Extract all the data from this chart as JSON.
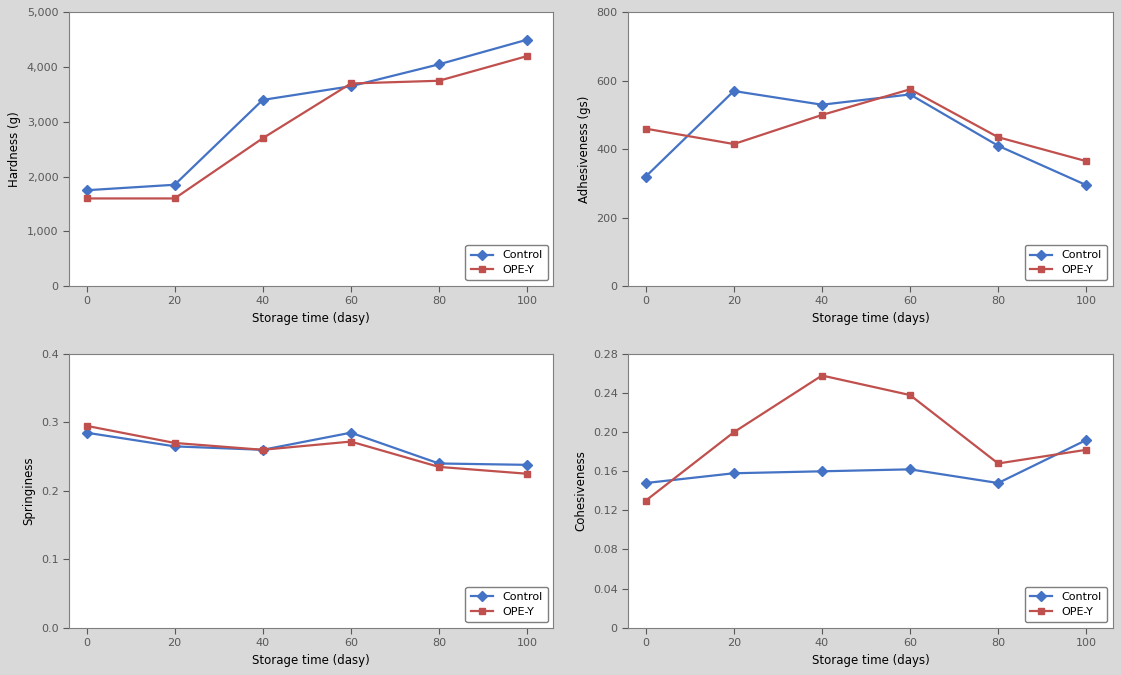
{
  "x": [
    0,
    20,
    40,
    60,
    80,
    100
  ],
  "hardness_control": [
    1750,
    1850,
    3400,
    3650,
    4050,
    4500
  ],
  "hardness_opey": [
    1600,
    1600,
    2700,
    3700,
    3750,
    4200
  ],
  "adhesiveness_control": [
    320,
    570,
    530,
    560,
    410,
    295
  ],
  "adhesiveness_opey": [
    460,
    415,
    500,
    575,
    435,
    365
  ],
  "springiness_control": [
    0.285,
    0.265,
    0.26,
    0.285,
    0.24,
    0.238
  ],
  "springiness_opey": [
    0.295,
    0.27,
    0.26,
    0.272,
    0.235,
    0.225
  ],
  "cohesiveness_control": [
    0.148,
    0.158,
    0.16,
    0.162,
    0.148,
    0.192
  ],
  "cohesiveness_opey": [
    0.13,
    0.2,
    0.258,
    0.238,
    0.168,
    0.182
  ],
  "color_control": "#4472C4",
  "color_opey": "#C0504D",
  "marker_control": "D",
  "marker_opey": "s",
  "xlabel_dasy": "Storage time (dasy)",
  "xlabel_days": "Storage time (days)",
  "ylabel_hardness": "Hardness (g)",
  "ylabel_adhesiveness": "Adhesiveness (gs)",
  "ylabel_springiness": "Springiness",
  "ylabel_cohesiveness": "Cohesiveness",
  "legend_control": "Control",
  "legend_opey": "OPE-Y",
  "hardness_ylim": [
    0,
    5000
  ],
  "hardness_yticks": [
    0,
    1000,
    2000,
    3000,
    4000,
    5000
  ],
  "adhesiveness_ylim": [
    0,
    800
  ],
  "adhesiveness_yticks": [
    0,
    200,
    400,
    600,
    800
  ],
  "springiness_ylim": [
    0.0,
    0.4
  ],
  "springiness_yticks": [
    0.0,
    0.1,
    0.2,
    0.3,
    0.4
  ],
  "cohesiveness_ylim": [
    0,
    0.28
  ],
  "cohesiveness_yticks": [
    0,
    0.04,
    0.08,
    0.12,
    0.16,
    0.2,
    0.24,
    0.28
  ],
  "xticks": [
    0,
    20,
    40,
    60,
    80,
    100
  ],
  "xlim": [
    -4,
    106
  ],
  "fig_bgcolor": "#d9d9d9",
  "ax_bgcolor": "#ffffff",
  "border_color": "#7f7f7f",
  "tick_color": "#595959",
  "gridline_color": "#d9d9d9"
}
